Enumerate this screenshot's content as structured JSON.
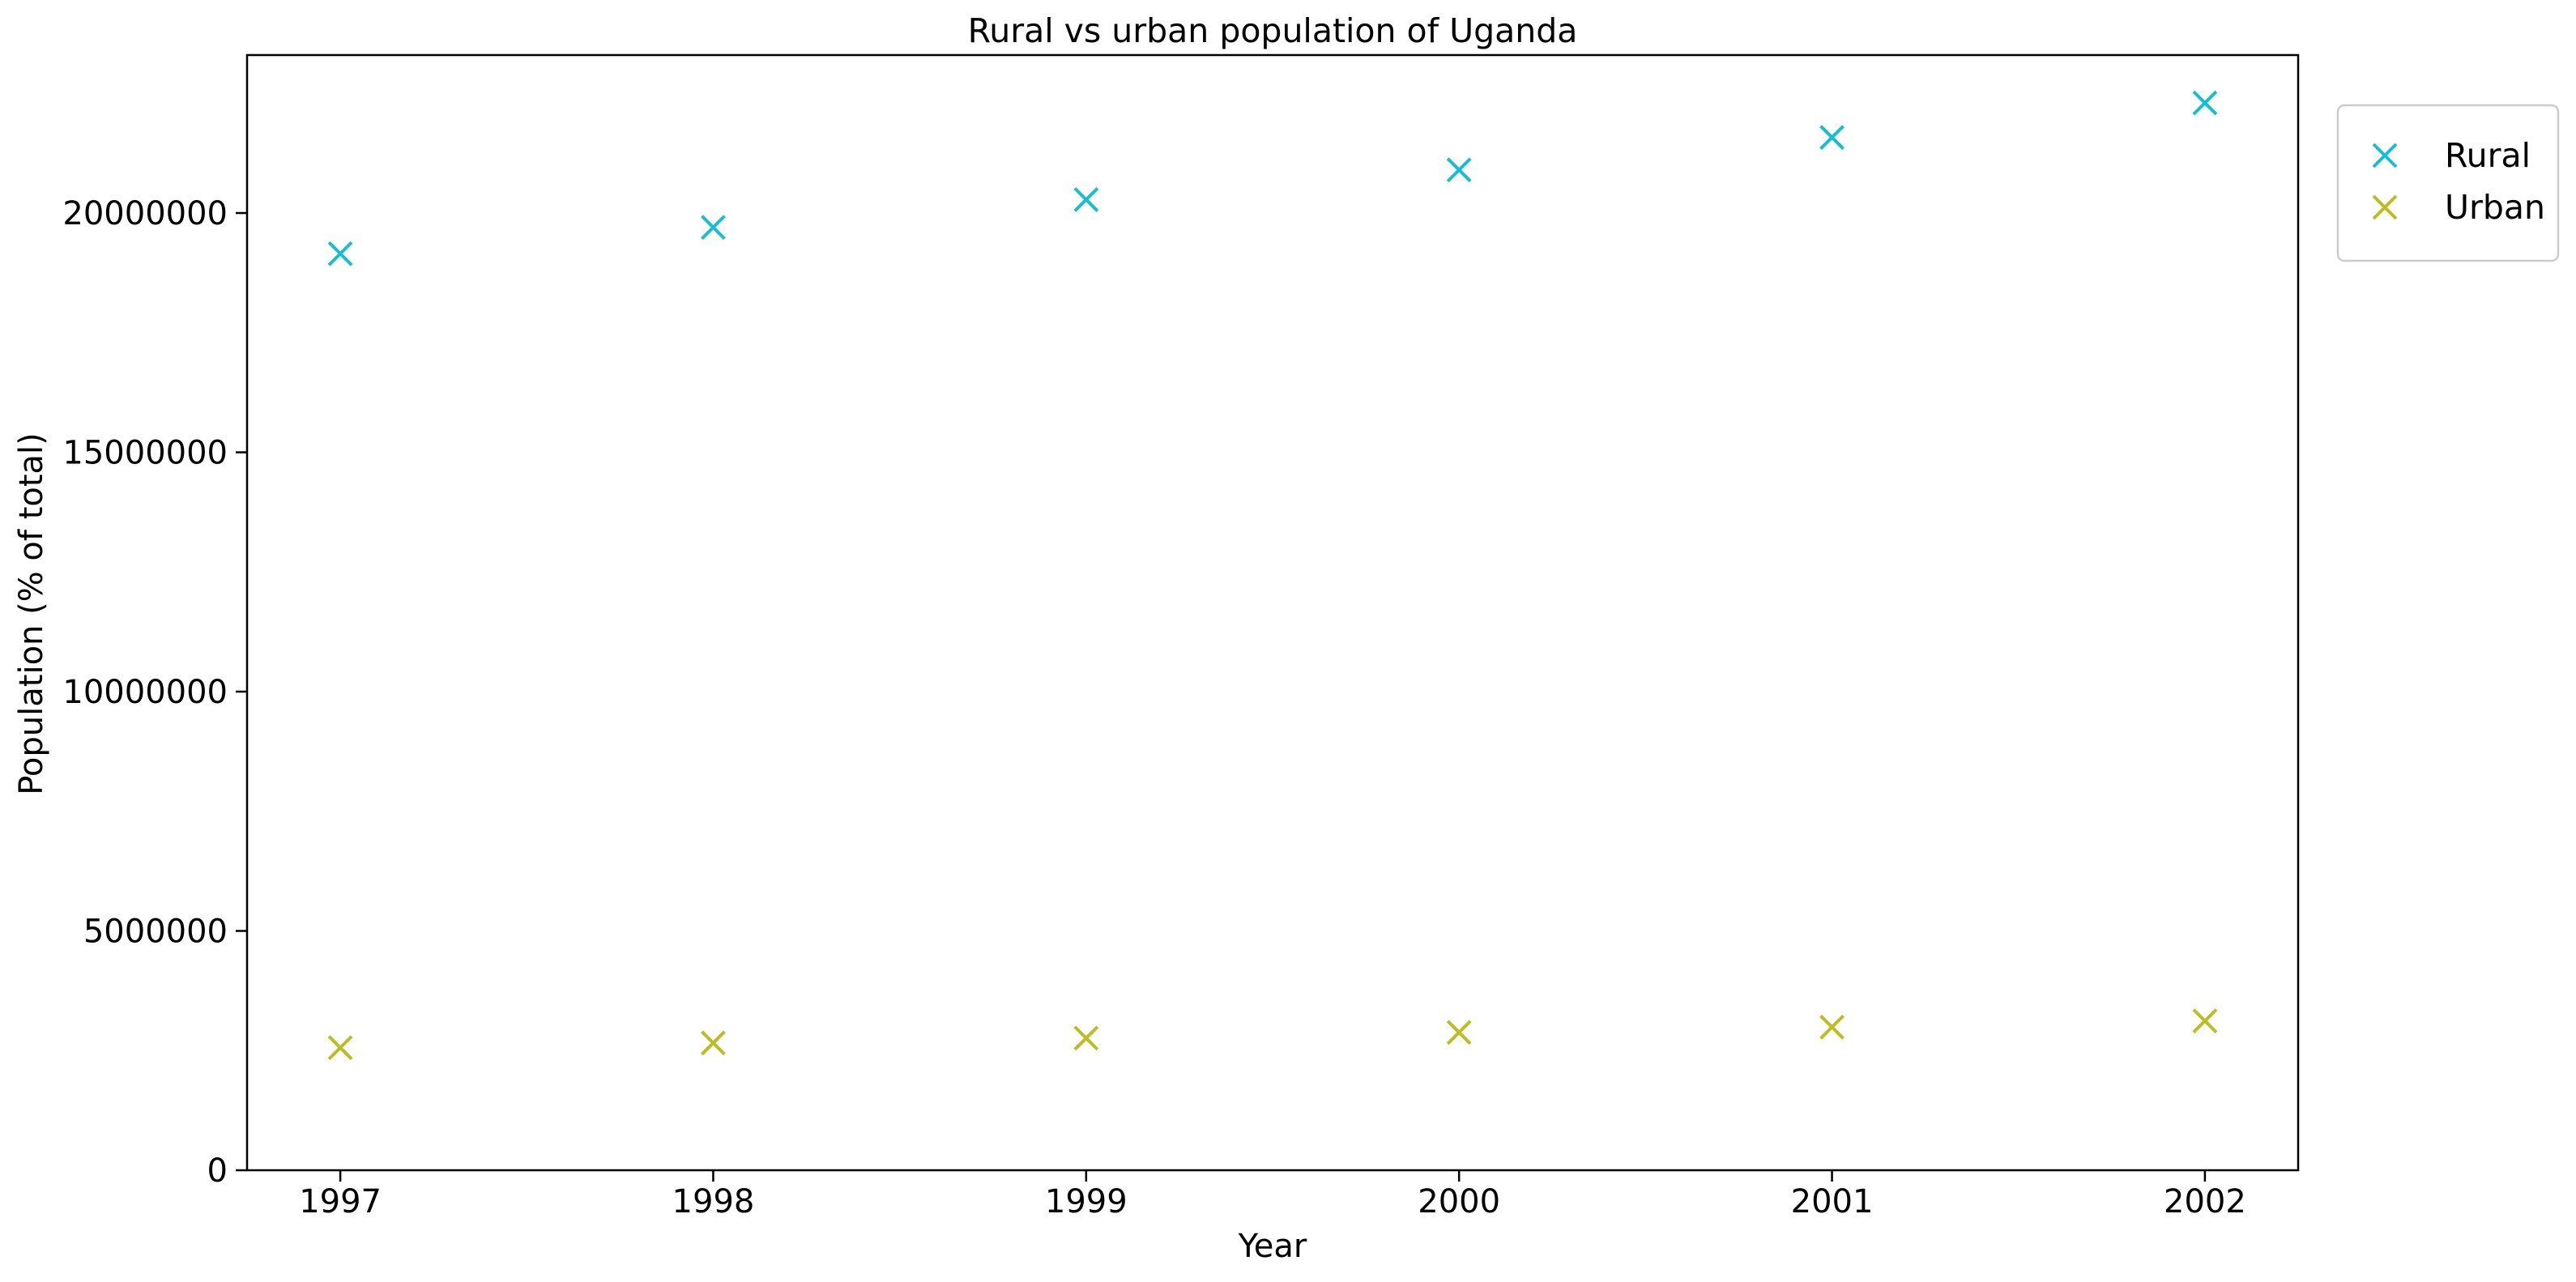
{
  "chart_data": {
    "type": "scatter",
    "title": "Rural vs urban population of Uganda",
    "xlabel": "Year",
    "ylabel": "Population (% of total)",
    "x": [
      1997,
      1998,
      1999,
      2000,
      2001,
      2002
    ],
    "xlim": [
      1996.75,
      2002.25
    ],
    "ylim": [
      0,
      23300000
    ],
    "x_ticks": [
      {
        "value": 1997,
        "label": "1997"
      },
      {
        "value": 1998,
        "label": "1998"
      },
      {
        "value": 1999,
        "label": "1999"
      },
      {
        "value": 2000,
        "label": "2000"
      },
      {
        "value": 2001,
        "label": "2001"
      },
      {
        "value": 2002,
        "label": "2002"
      }
    ],
    "y_ticks": [
      {
        "value": 0,
        "label": "0"
      },
      {
        "value": 5000000,
        "label": "5000000"
      },
      {
        "value": 10000000,
        "label": "10000000"
      },
      {
        "value": 15000000,
        "label": "15000000"
      },
      {
        "value": 20000000,
        "label": "20000000"
      }
    ],
    "grid": false,
    "marker": "x",
    "legend_position": "outside-top-right",
    "series": [
      {
        "name": "Rural",
        "color": "#17becf",
        "values": [
          19150000,
          19700000,
          20280000,
          20900000,
          21580000,
          22300000
        ]
      },
      {
        "name": "Urban",
        "color": "#bcbd22",
        "values": [
          2560000,
          2660000,
          2760000,
          2880000,
          2990000,
          3120000
        ]
      }
    ]
  }
}
